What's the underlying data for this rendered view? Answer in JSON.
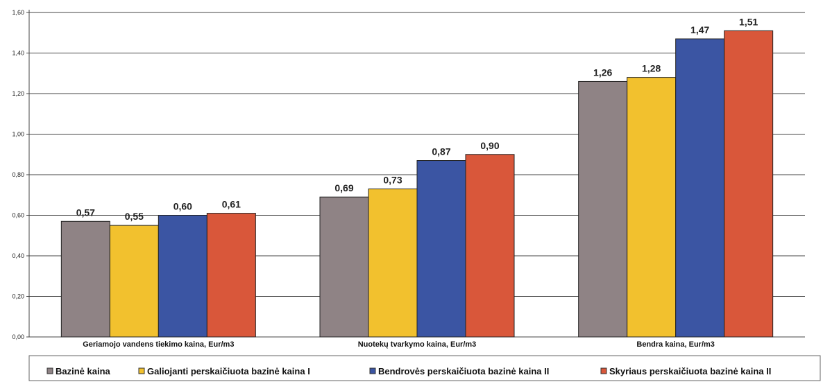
{
  "chart_data": {
    "type": "bar",
    "categories": [
      "Geriamojo vandens tiekimo kaina, Eur/m3",
      "Nuotekų tvarkymo kaina, Eur/m3",
      "Bendra kaina, Eur/m3"
    ],
    "series": [
      {
        "name": "Bazinė kaina",
        "color": "#8f8385",
        "values": [
          0.57,
          0.69,
          1.26
        ],
        "labels": [
          "0,57",
          "0,69",
          "1,26"
        ]
      },
      {
        "name": "Galiojanti perskaičiuota bazinė kaina I",
        "color": "#f2c12e",
        "values": [
          0.55,
          0.73,
          1.28
        ],
        "labels": [
          "0,55",
          "0,73",
          "1,28"
        ]
      },
      {
        "name": "Bendrovės perskaičiuota bazinė kaina II",
        "color": "#3b55a3",
        "values": [
          0.6,
          0.87,
          1.47
        ],
        "labels": [
          "0,60",
          "0,87",
          "1,47"
        ]
      },
      {
        "name": "Skyriaus perskaičiuota bazinė kaina II",
        "color": "#d9573a",
        "values": [
          0.61,
          0.9,
          1.51
        ],
        "labels": [
          "0,61",
          "0,90",
          "1,51"
        ]
      }
    ],
    "yticks": [
      0,
      0.2,
      0.4,
      0.6,
      0.8,
      1.0,
      1.2,
      1.4,
      1.6
    ],
    "ytick_labels": [
      "0,00",
      "0,20",
      "0,40",
      "0,60",
      "0,80",
      "1,00",
      "1,20",
      "1,40",
      "1,60"
    ],
    "ylim": [
      0,
      1.6
    ],
    "grid": true,
    "legend_position": "bottom"
  }
}
